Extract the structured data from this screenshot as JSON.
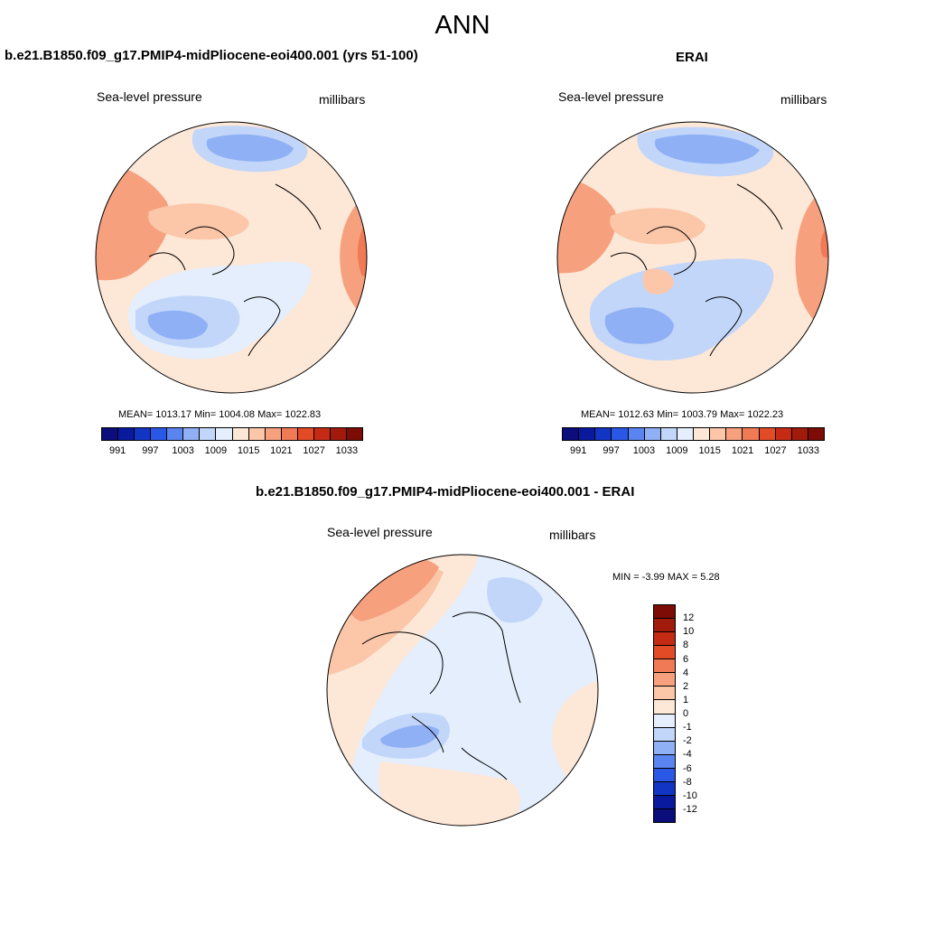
{
  "figure": {
    "title": "ANN"
  },
  "panels": {
    "model": {
      "title": "b.e21.B1850.f09_g17.PMIP4-midPliocene-eoi400.001 (yrs 51-100)",
      "variable": "Sea-level pressure",
      "units": "millibars",
      "stats": "MEAN= 1013.17  Min= 1004.08  Max= 1022.83"
    },
    "obs": {
      "title": "ERAI",
      "variable": "Sea-level pressure",
      "units": "millibars",
      "stats": "MEAN= 1012.63  Min= 1003.79  Max= 1022.23"
    },
    "diff": {
      "title": "b.e21.B1850.f09_g17.PMIP4-midPliocene-eoi400.001 - ERAI",
      "variable": "Sea-level pressure",
      "units": "millibars",
      "stats": "MIN =  -3.99 MAX =   5.28"
    }
  },
  "colorbars": {
    "abs_ticks": [
      "991",
      "997",
      "1003",
      "1009",
      "1015",
      "1021",
      "1027",
      "1033"
    ],
    "abs_colors": [
      "#0b0d7a",
      "#0a1a9e",
      "#1235c4",
      "#2a57e6",
      "#5a85f0",
      "#8fb0f5",
      "#c2d6fa",
      "#e4eefc",
      "#fde7d6",
      "#fcc6a8",
      "#f7a07e",
      "#f07a55",
      "#e34a26",
      "#c52a14",
      "#a11a0c",
      "#7d0c06"
    ],
    "diff_ticks": [
      "12",
      "10",
      "8",
      "6",
      "4",
      "2",
      "1",
      "0",
      "-1",
      "-2",
      "-4",
      "-6",
      "-8",
      "-10",
      "-12"
    ],
    "diff_colors": [
      "#7d0c06",
      "#a11a0c",
      "#c52a14",
      "#e34a26",
      "#f07a55",
      "#f7a07e",
      "#fcc6a8",
      "#fde7d6",
      "#e4eefc",
      "#c2d6fa",
      "#8fb0f5",
      "#5a85f0",
      "#2a57e6",
      "#1235c4",
      "#0a1a9e",
      "#0b0d7a"
    ]
  }
}
